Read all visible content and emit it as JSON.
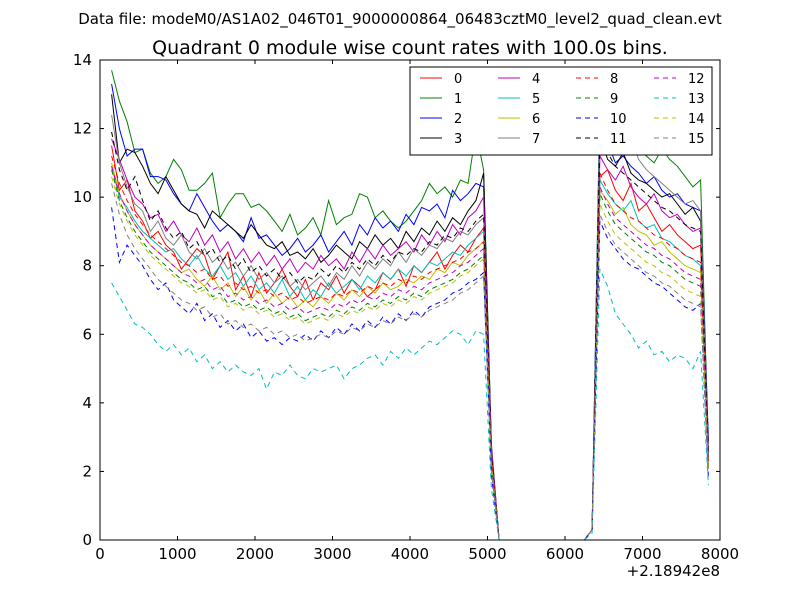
{
  "chart_data": {
    "type": "line",
    "suptitle": "Data file: modeM0/AS1A02_046T01_9000000864_06483cztM0_level2_quad_clean.evt",
    "title": "Quadrant 0 module wise count rates with 100.0s bins.",
    "xlabel": "",
    "ylabel": "",
    "x_offset_label": "+2.18942e8",
    "xlim": [
      0,
      8000
    ],
    "ylim": [
      0,
      14
    ],
    "xticks": [
      "0",
      "1000",
      "2000",
      "3000",
      "4000",
      "5000",
      "6000",
      "7000",
      "8000"
    ],
    "yticks": [
      "0",
      "2",
      "4",
      "6",
      "8",
      "10",
      "12",
      "14"
    ],
    "legend_position": "top-right",
    "x": [
      150,
      250,
      350,
      450,
      550,
      650,
      750,
      850,
      950,
      1050,
      1150,
      1250,
      1350,
      1450,
      1550,
      1650,
      1750,
      1850,
      1950,
      2050,
      2150,
      2250,
      2350,
      2450,
      2550,
      2650,
      2750,
      2850,
      2950,
      3050,
      3150,
      3250,
      3350,
      3450,
      3550,
      3650,
      3750,
      3850,
      3950,
      4050,
      4150,
      4250,
      4350,
      4450,
      4550,
      4650,
      4750,
      4850,
      4950,
      5050,
      5150,
      6250,
      6350,
      6450,
      6550,
      6650,
      6750,
      6850,
      6950,
      7050,
      7150,
      7250,
      7350,
      7450,
      7550,
      7650,
      7750,
      7850
    ],
    "series": [
      {
        "name": "0",
        "color": "#ff0000",
        "dash": "solid",
        "values": [
          11.5,
          10.2,
          10.5,
          9.6,
          9.3,
          8.8,
          9.0,
          8.6,
          8.4,
          7.9,
          8.2,
          8.5,
          8.3,
          7.6,
          8.0,
          8.4,
          7.3,
          7.7,
          7.1,
          7.8,
          7.2,
          7.5,
          7.9,
          7.4,
          7.1,
          7.6,
          7.0,
          7.5,
          7.3,
          7.7,
          7.2,
          7.6,
          7.4,
          7.1,
          7.3,
          7.8,
          7.6,
          7.9,
          7.4,
          8.0,
          7.8,
          8.1,
          8.4,
          7.9,
          8.3,
          8.6,
          8.4,
          8.8,
          9.1,
          2.6,
          0.0,
          0.0,
          0.3,
          10.6,
          10.8,
          10.2,
          9.9,
          10.4,
          9.6,
          9.8,
          9.4,
          9.0,
          9.2,
          8.9,
          8.7,
          8.5,
          8.6,
          2.8
        ]
      },
      {
        "name": "1",
        "color": "#008000",
        "dash": "solid",
        "values": [
          13.7,
          12.8,
          12.2,
          11.3,
          11.4,
          10.7,
          10.4,
          10.6,
          11.1,
          10.8,
          10.2,
          10.2,
          10.4,
          10.7,
          9.4,
          9.8,
          10.1,
          10.1,
          9.7,
          9.8,
          9.6,
          9.3,
          9.0,
          9.5,
          8.9,
          9.1,
          9.4,
          8.9,
          9.9,
          9.2,
          9.4,
          9.5,
          10.1,
          10.0,
          9.4,
          9.6,
          9.3,
          9.1,
          9.3,
          9.6,
          9.9,
          10.4,
          10.1,
          10.3,
          10.0,
          10.5,
          10.4,
          11.9,
          10.8,
          2.8,
          0.0,
          0.0,
          0.3,
          12.9,
          12.0,
          11.8,
          12.3,
          11.8,
          11.4,
          11.2,
          11.0,
          11.4,
          11.1,
          10.9,
          10.6,
          10.3,
          10.5,
          2.6
        ]
      },
      {
        "name": "2",
        "color": "#0000ff",
        "dash": "solid",
        "values": [
          13.3,
          12.0,
          11.2,
          11.4,
          11.4,
          10.6,
          10.6,
          10.5,
          10.1,
          9.8,
          9.6,
          10.1,
          9.7,
          9.3,
          9.0,
          9.2,
          9.0,
          8.7,
          9.4,
          8.8,
          8.9,
          8.6,
          8.3,
          8.5,
          8.8,
          8.4,
          8.6,
          8.9,
          8.4,
          8.7,
          9.0,
          8.6,
          9.2,
          8.9,
          9.4,
          9.1,
          9.3,
          9.0,
          9.5,
          9.2,
          9.7,
          9.6,
          9.8,
          9.4,
          10.2,
          9.9,
          10.1,
          10.4,
          10.3,
          2.6,
          0.0,
          0.0,
          0.3,
          12.6,
          11.6,
          11.0,
          11.2,
          10.9,
          10.7,
          10.4,
          10.6,
          10.2,
          10.0,
          10.1,
          9.8,
          9.7,
          9.6,
          2.9
        ]
      },
      {
        "name": "3",
        "color": "#000000",
        "dash": "solid",
        "values": [
          13.0,
          11.0,
          11.4,
          11.3,
          10.9,
          10.4,
          10.1,
          10.6,
          10.2,
          9.8,
          9.6,
          9.5,
          9.1,
          9.6,
          9.4,
          9.2,
          9.0,
          8.8,
          9.2,
          8.9,
          8.6,
          8.5,
          8.7,
          8.3,
          8.4,
          8.2,
          8.5,
          8.1,
          8.3,
          8.6,
          8.4,
          8.2,
          8.7,
          8.5,
          8.9,
          8.6,
          8.8,
          8.5,
          9.0,
          8.7,
          9.1,
          8.9,
          9.3,
          9.0,
          9.4,
          9.2,
          9.6,
          9.9,
          10.7,
          2.7,
          0.0,
          0.0,
          0.3,
          11.8,
          11.1,
          10.9,
          11.3,
          10.7,
          10.5,
          10.4,
          10.2,
          10.0,
          10.1,
          9.8,
          9.5,
          9.7,
          9.3,
          2.5
        ]
      },
      {
        "name": "4",
        "color": "#bf00bf",
        "dash": "solid",
        "values": [
          11.7,
          11.1,
          10.5,
          10.0,
          9.8,
          9.4,
          9.5,
          9.0,
          9.3,
          8.9,
          8.7,
          9.1,
          8.6,
          8.9,
          8.4,
          8.7,
          8.2,
          8.5,
          8.1,
          8.4,
          8.0,
          8.3,
          7.9,
          8.2,
          7.8,
          8.1,
          7.9,
          8.3,
          8.0,
          8.2,
          7.9,
          8.4,
          8.1,
          8.5,
          8.2,
          8.6,
          8.3,
          8.5,
          8.7,
          8.4,
          8.9,
          8.6,
          9.0,
          8.7,
          9.2,
          8.9,
          9.4,
          9.6,
          10.0,
          2.7,
          0.0,
          0.0,
          0.3,
          11.2,
          10.8,
          10.5,
          10.9,
          10.3,
          10.0,
          9.8,
          10.1,
          9.6,
          9.4,
          9.5,
          9.2,
          9.0,
          9.1,
          2.4
        ]
      },
      {
        "name": "5",
        "color": "#00bfbf",
        "dash": "solid",
        "values": [
          10.9,
          10.0,
          9.7,
          9.3,
          9.0,
          8.8,
          8.6,
          8.4,
          8.5,
          8.2,
          8.0,
          8.3,
          7.9,
          7.7,
          8.0,
          7.6,
          7.8,
          7.4,
          7.7,
          7.3,
          7.5,
          7.2,
          7.6,
          7.1,
          7.4,
          7.0,
          7.3,
          7.1,
          7.5,
          7.2,
          7.4,
          7.6,
          7.3,
          7.7,
          7.5,
          7.8,
          7.6,
          7.9,
          7.7,
          8.0,
          7.8,
          8.1,
          8.0,
          8.2,
          8.4,
          8.3,
          8.6,
          8.8,
          9.0,
          2.3,
          0.0,
          0.0,
          0.3,
          10.5,
          10.1,
          9.8,
          9.6,
          9.9,
          9.3,
          9.1,
          9.2,
          8.8,
          8.7,
          8.5,
          8.3,
          8.2,
          8.0,
          2.2
        ]
      },
      {
        "name": "6",
        "color": "#bfbf00",
        "dash": "solid",
        "values": [
          11.0,
          10.1,
          9.6,
          9.2,
          8.9,
          8.6,
          8.4,
          8.2,
          8.0,
          7.8,
          7.9,
          7.6,
          7.4,
          7.7,
          7.3,
          7.5,
          7.1,
          7.4,
          7.0,
          7.3,
          6.9,
          7.2,
          6.9,
          7.1,
          6.8,
          7.0,
          6.8,
          7.1,
          6.9,
          7.2,
          7.0,
          7.3,
          7.1,
          7.4,
          7.2,
          7.5,
          7.3,
          7.4,
          7.6,
          7.5,
          7.7,
          7.6,
          7.9,
          7.8,
          8.1,
          8.0,
          8.3,
          8.5,
          8.7,
          2.2,
          0.0,
          0.0,
          0.3,
          10.2,
          9.9,
          9.5,
          9.7,
          9.2,
          9.0,
          8.9,
          8.6,
          8.7,
          8.4,
          8.2,
          8.0,
          7.9,
          7.8,
          2.1
        ]
      },
      {
        "name": "7",
        "color": "#808080",
        "dash": "solid",
        "values": [
          12.4,
          11.0,
          10.3,
          9.8,
          9.6,
          9.0,
          9.3,
          8.8,
          8.6,
          8.9,
          8.4,
          8.2,
          8.5,
          8.1,
          8.3,
          7.9,
          8.1,
          7.7,
          8.0,
          7.6,
          7.8,
          7.5,
          7.7,
          7.4,
          7.6,
          7.3,
          7.5,
          7.7,
          7.4,
          7.8,
          7.6,
          8.0,
          7.7,
          8.1,
          7.9,
          8.2,
          8.0,
          8.4,
          8.1,
          8.5,
          8.3,
          8.6,
          8.5,
          8.8,
          8.7,
          9.0,
          8.9,
          9.2,
          9.4,
          2.5,
          0.0,
          0.0,
          0.3,
          12.3,
          11.4,
          12.5,
          12.0,
          11.7,
          11.1,
          10.8,
          10.6,
          10.4,
          10.2,
          10.0,
          9.8,
          9.9,
          9.6,
          2.3
        ]
      },
      {
        "name": "8",
        "color": "#ff0000",
        "dash": "dashed",
        "values": [
          11.2,
          10.4,
          9.9,
          9.5,
          9.2,
          8.9,
          8.7,
          8.5,
          8.3,
          8.1,
          8.0,
          7.8,
          7.9,
          7.6,
          7.7,
          7.4,
          7.5,
          7.3,
          7.4,
          7.2,
          7.3,
          7.1,
          7.2,
          7.0,
          7.1,
          6.9,
          7.0,
          7.1,
          7.0,
          7.2,
          7.1,
          7.3,
          7.2,
          7.4,
          7.3,
          7.5,
          7.4,
          7.6,
          7.5,
          7.7,
          7.6,
          7.8,
          7.9,
          8.0,
          8.1,
          8.2,
          8.4,
          8.5,
          8.7,
          2.4,
          0.0,
          0.0,
          0.3,
          10.7,
          10.2,
          9.8,
          9.6,
          9.4,
          9.3,
          9.1,
          8.9,
          8.8,
          8.6,
          8.5,
          8.3,
          8.2,
          8.1,
          2.3
        ]
      },
      {
        "name": "9",
        "color": "#008000",
        "dash": "dashed",
        "values": [
          10.8,
          9.9,
          9.4,
          9.0,
          8.7,
          8.4,
          8.2,
          8.0,
          7.8,
          7.6,
          7.5,
          7.3,
          7.4,
          7.1,
          7.2,
          6.9,
          7.0,
          6.8,
          6.9,
          6.7,
          6.8,
          6.6,
          6.7,
          6.5,
          6.6,
          6.4,
          6.5,
          6.6,
          6.5,
          6.7,
          6.6,
          6.8,
          6.7,
          6.9,
          6.8,
          7.0,
          6.9,
          7.1,
          7.0,
          7.2,
          7.1,
          7.3,
          7.4,
          7.5,
          7.6,
          7.8,
          7.9,
          8.1,
          8.3,
          2.2,
          0.0,
          0.0,
          0.3,
          10.1,
          9.6,
          9.2,
          9.0,
          8.8,
          8.6,
          8.4,
          8.3,
          8.1,
          8.0,
          7.8,
          7.6,
          7.5,
          7.4,
          2.1
        ]
      },
      {
        "name": "10",
        "color": "#0000ff",
        "dash": "dashed",
        "values": [
          9.7,
          8.1,
          8.6,
          8.3,
          8.0,
          7.6,
          7.3,
          7.5,
          7.0,
          6.8,
          6.6,
          6.9,
          6.4,
          6.6,
          6.2,
          6.4,
          6.1,
          6.3,
          5.9,
          6.1,
          5.8,
          5.9,
          5.7,
          5.9,
          5.8,
          6.0,
          5.8,
          6.1,
          5.9,
          6.2,
          6.0,
          6.3,
          6.1,
          6.4,
          6.2,
          6.5,
          6.3,
          6.6,
          6.4,
          6.7,
          6.5,
          6.8,
          6.9,
          7.0,
          7.2,
          7.3,
          7.5,
          7.6,
          7.8,
          1.9,
          0.0,
          0.0,
          0.3,
          9.3,
          8.8,
          8.5,
          8.2,
          8.0,
          7.9,
          7.7,
          7.5,
          7.4,
          7.2,
          7.0,
          6.8,
          6.7,
          6.9,
          1.8
        ]
      },
      {
        "name": "11",
        "color": "#000000",
        "dash": "dashed",
        "values": [
          11.9,
          10.8,
          10.2,
          10.6,
          9.9,
          9.3,
          9.6,
          9.1,
          8.8,
          9.0,
          8.5,
          8.7,
          8.3,
          8.5,
          8.1,
          8.3,
          7.9,
          8.2,
          7.8,
          8.0,
          7.7,
          7.9,
          7.6,
          7.8,
          7.5,
          7.7,
          7.6,
          7.9,
          7.7,
          8.0,
          7.8,
          8.1,
          7.9,
          8.2,
          8.0,
          8.3,
          8.1,
          8.4,
          8.3,
          8.5,
          8.4,
          8.7,
          8.6,
          8.9,
          8.8,
          9.1,
          9.0,
          9.3,
          9.5,
          2.5,
          0.0,
          0.0,
          0.3,
          11.9,
          11.3,
          10.9,
          10.7,
          10.5,
          10.3,
          10.1,
          9.9,
          9.7,
          9.6,
          9.4,
          9.2,
          9.1,
          9.0,
          2.4
        ]
      },
      {
        "name": "12",
        "color": "#bf00bf",
        "dash": "dashed",
        "values": [
          10.9,
          10.1,
          9.6,
          9.2,
          8.9,
          8.6,
          8.4,
          8.2,
          8.0,
          7.8,
          7.7,
          7.5,
          7.6,
          7.3,
          7.4,
          7.1,
          7.2,
          7.0,
          7.1,
          6.9,
          7.0,
          6.8,
          6.9,
          6.7,
          6.8,
          6.6,
          6.7,
          6.8,
          6.7,
          6.9,
          6.8,
          7.0,
          6.9,
          7.1,
          7.0,
          7.2,
          7.1,
          7.3,
          7.2,
          7.4,
          7.3,
          7.5,
          7.6,
          7.7,
          7.8,
          8.0,
          8.1,
          8.3,
          8.5,
          2.3,
          0.0,
          0.0,
          0.3,
          10.3,
          9.8,
          9.4,
          9.2,
          9.0,
          8.8,
          8.6,
          8.5,
          8.3,
          8.2,
          8.0,
          7.8,
          7.7,
          7.6,
          2.2
        ]
      },
      {
        "name": "13",
        "color": "#00bfbf",
        "dash": "dashed",
        "values": [
          7.5,
          7.1,
          6.7,
          6.3,
          6.2,
          6.0,
          5.7,
          5.5,
          5.7,
          5.4,
          5.6,
          5.2,
          5.4,
          5.0,
          5.2,
          4.9,
          5.1,
          4.9,
          4.8,
          5.0,
          4.4,
          4.9,
          4.8,
          5.1,
          4.8,
          4.7,
          5.0,
          4.9,
          5.0,
          5.1,
          4.7,
          5.0,
          5.1,
          5.3,
          5.4,
          5.1,
          5.5,
          5.3,
          5.6,
          5.4,
          5.6,
          5.8,
          5.7,
          5.9,
          6.1,
          6.0,
          5.7,
          6.1,
          6.0,
          1.5,
          0.0,
          0.0,
          0.2,
          7.9,
          7.4,
          6.6,
          6.3,
          6.0,
          5.6,
          5.8,
          5.4,
          5.5,
          5.2,
          5.4,
          5.3,
          5.0,
          5.5,
          1.6
        ]
      },
      {
        "name": "14",
        "color": "#bfbf00",
        "dash": "dashed",
        "values": [
          10.6,
          9.8,
          9.3,
          8.9,
          8.6,
          8.3,
          8.1,
          7.9,
          7.7,
          7.5,
          7.4,
          7.2,
          7.3,
          7.0,
          7.1,
          6.8,
          6.9,
          6.7,
          6.8,
          6.6,
          6.7,
          6.5,
          6.6,
          6.4,
          6.5,
          6.3,
          6.4,
          6.5,
          6.4,
          6.6,
          6.5,
          6.7,
          6.6,
          6.8,
          6.7,
          6.9,
          6.8,
          7.0,
          6.9,
          7.1,
          7.0,
          7.2,
          7.3,
          7.4,
          7.5,
          7.7,
          7.8,
          8.0,
          8.2,
          2.2,
          0.0,
          0.0,
          0.3,
          9.8,
          9.3,
          8.9,
          8.7,
          8.5,
          8.3,
          8.1,
          8.0,
          7.8,
          7.7,
          7.5,
          7.3,
          7.2,
          7.1,
          2.1
        ]
      },
      {
        "name": "15",
        "color": "#808080",
        "dash": "dashed",
        "values": [
          10.4,
          9.5,
          8.9,
          8.5,
          8.2,
          7.9,
          7.6,
          7.4,
          7.2,
          7.0,
          6.9,
          6.7,
          6.8,
          6.5,
          6.6,
          6.3,
          6.4,
          6.2,
          6.3,
          6.1,
          6.2,
          6.0,
          6.1,
          5.9,
          6.0,
          5.8,
          5.9,
          6.0,
          5.9,
          6.1,
          6.0,
          6.2,
          6.1,
          6.3,
          6.2,
          6.4,
          6.3,
          6.5,
          6.4,
          6.6,
          6.5,
          6.7,
          6.8,
          6.9,
          7.0,
          7.2,
          7.3,
          7.5,
          7.7,
          2.0,
          0.0,
          0.0,
          0.3,
          9.5,
          9.0,
          8.6,
          8.4,
          8.2,
          8.0,
          7.8,
          7.7,
          7.5,
          7.4,
          7.2,
          7.0,
          6.9,
          6.8,
          2.0
        ]
      }
    ]
  }
}
